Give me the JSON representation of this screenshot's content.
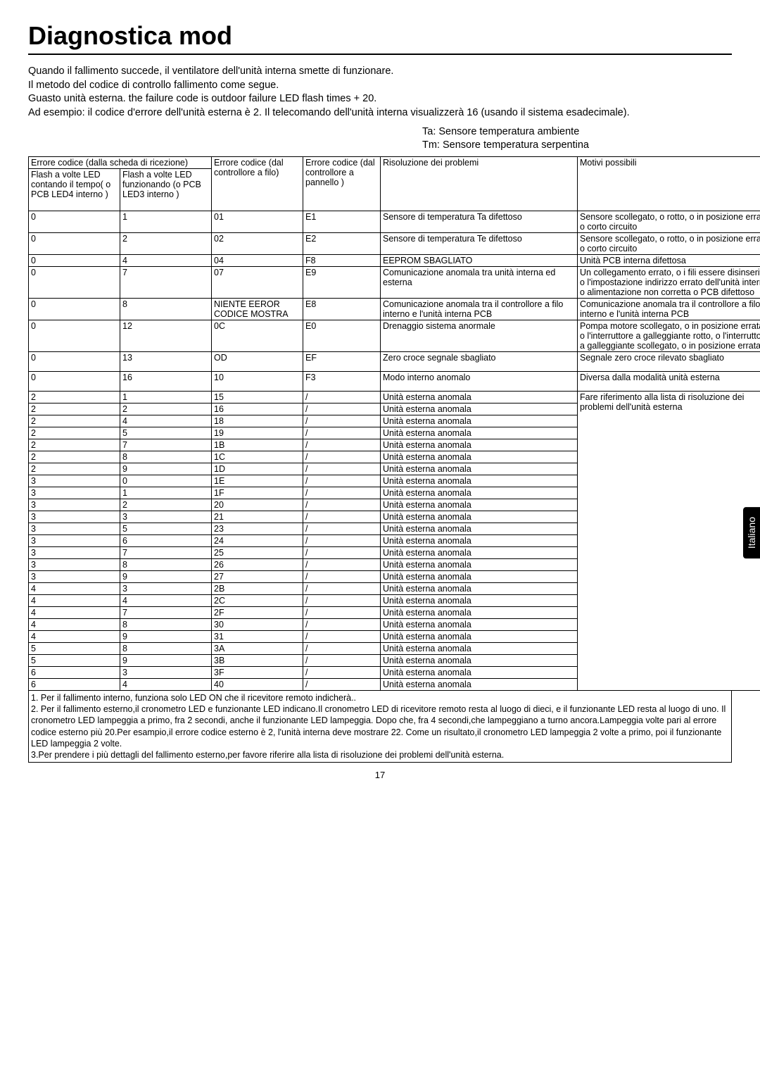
{
  "title": "Diagnostica mod",
  "intro": [
    "Quando il fallimento succede, il ventilatore dell'unità interna smette di funzionare.",
    "Il metodo del codice di controllo fallimento come segue.",
    "Guasto unità esterna. the failure code is outdoor failure LED flash times + 20.",
    "Ad esempio: il codice d'errore dell'unità esterna è 2. Il telecomando dell'unità interna visualizzerà 16 (usando il sistema esadecimale)."
  ],
  "legend": {
    "ta": "Ta: Sensore temperatura ambiente",
    "tm": "Tm: Sensore temperatura serpentina"
  },
  "headers": {
    "h12": "Errore codice (dalla scheda di ricezione)",
    "h3": "Errore codice (dal controllore a filo)",
    "h4": "Errore codice (dal controllore a pannello )",
    "h5": "Risoluzione dei problemi",
    "h6": "Motivi possibili",
    "sub1": "Flash a volte LED contando il tempo( o PCB LED4 interno )",
    "sub2": "Flash a volte LED funzionando (o PCB LED3 interno )"
  },
  "rows": [
    {
      "c1": "0",
      "c2": "1",
      "c3": "01",
      "c4": "E1",
      "c5": "Sensore di temperatura Ta difettoso",
      "c6": "Sensore scollegato, o rotto, o in posizione errata, o corto circuito",
      "tall": true
    },
    {
      "c1": "0",
      "c2": "2",
      "c3": "02",
      "c4": "E2",
      "c5": "Sensore di temperatura Te difettoso",
      "c6": "Sensore scollegato, o rotto, o in posizione errata, o corto circuito",
      "tall": true
    },
    {
      "c1": "0",
      "c2": "4",
      "c3": "04",
      "c4": "F8",
      "c5": "EEPROM SBAGLIATO",
      "c6": "Unità PCB interna difettosa"
    },
    {
      "c1": "0",
      "c2": "7",
      "c3": "07",
      "c4": "E9",
      "c5": "Comunicazione anomala tra unità interna ed esterna",
      "c6": "Un collegamento errato, o i fili essere disinserito, o l'impostazione indirizzo errato dell'unità interna o alimentazione non corretta o PCB difettoso",
      "tall": true
    },
    {
      "c1": "0",
      "c2": "8",
      "c3": "NIENTE EEROR CODICE MOSTRA",
      "c4": "E8",
      "c5": "Comunicazione anomala tra il controllore a filo interno e l'unità interna PCB",
      "c6": "Comunicazione anomala tra il controllore a filo interno e l'unità interna PCB",
      "tall": true
    },
    {
      "c1": "0",
      "c2": "12",
      "c3": "0C",
      "c4": "E0",
      "c5": "Drenaggio sistema anormale",
      "c6": "Pompa motore scollegato, o in posizione errata, o l'interruttore a galleggiante rotto, o l'interruttore a galleggiante scollegato, o in posizione errata.",
      "tall": true
    },
    {
      "c1": "0",
      "c2": "13",
      "c3": "OD",
      "c4": "EF",
      "c5": "Zero croce segnale sbagliato",
      "c6": "Segnale zero croce rilevato sbagliato",
      "tall": true
    },
    {
      "c1": "0",
      "c2": "16",
      "c3": "10",
      "c4": "F3",
      "c5": "Modo interno anomalo",
      "c6": "Diversa dalla modalità unità esterna",
      "tall": true
    }
  ],
  "extRows": [
    {
      "c1": "2",
      "c2": "1",
      "c3": "15",
      "c4": "/",
      "c5": "Unità esterna  anomala"
    },
    {
      "c1": "2",
      "c2": "2",
      "c3": "16",
      "c4": "/",
      "c5": "Unità esterna  anomala"
    },
    {
      "c1": "2",
      "c2": "4",
      "c3": "18",
      "c4": "/",
      "c5": "Unità esterna  anomala"
    },
    {
      "c1": "2",
      "c2": "5",
      "c3": "19",
      "c4": "/",
      "c5": "Unità esterna  anomala"
    },
    {
      "c1": "2",
      "c2": "7",
      "c3": "1B",
      "c4": "/",
      "c5": "Unità esterna  anomala"
    },
    {
      "c1": "2",
      "c2": "8",
      "c3": "1C",
      "c4": "/",
      "c5": "Unità esterna  anomala"
    },
    {
      "c1": "2",
      "c2": "9",
      "c3": "1D",
      "c4": "/",
      "c5": "Unità esterna  anomala"
    },
    {
      "c1": "3",
      "c2": "0",
      "c3": "1E",
      "c4": "/",
      "c5": "Unità esterna  anomala"
    },
    {
      "c1": "3",
      "c2": "1",
      "c3": "1F",
      "c4": "/",
      "c5": "Unità esterna  anomala"
    },
    {
      "c1": "3",
      "c2": "2",
      "c3": "20",
      "c4": "/",
      "c5": "Unità esterna  anomala"
    },
    {
      "c1": "3",
      "c2": "3",
      "c3": "21",
      "c4": "/",
      "c5": "Unità esterna  anomala"
    },
    {
      "c1": "3",
      "c2": "5",
      "c3": "23",
      "c4": "/",
      "c5": "Unità esterna  anomala"
    },
    {
      "c1": "3",
      "c2": "6",
      "c3": "24",
      "c4": "/",
      "c5": "Unità esterna  anomala"
    },
    {
      "c1": "3",
      "c2": "7",
      "c3": "25",
      "c4": "/",
      "c5": "Unità esterna  anomala"
    },
    {
      "c1": "3",
      "c2": "8",
      "c3": "26",
      "c4": "/",
      "c5": "Unità esterna  anomala"
    },
    {
      "c1": "3",
      "c2": "9",
      "c3": "27",
      "c4": "/",
      "c5": "Unità esterna  anomala"
    },
    {
      "c1": "4",
      "c2": "3",
      "c3": "2B",
      "c4": "/",
      "c5": "Unità esterna  anomala"
    },
    {
      "c1": "4",
      "c2": "4",
      "c3": "2C",
      "c4": "/",
      "c5": "Unità esterna  anomala"
    },
    {
      "c1": "4",
      "c2": "7",
      "c3": "2F",
      "c4": "/",
      "c5": "Unità esterna  anomala"
    },
    {
      "c1": "4",
      "c2": "8",
      "c3": "30",
      "c4": "/",
      "c5": "Unità esterna  anomala"
    },
    {
      "c1": "4",
      "c2": "9",
      "c3": "31",
      "c4": "/",
      "c5": "Unità esterna  anomala"
    },
    {
      "c1": "5",
      "c2": "8",
      "c3": "3A",
      "c4": "/",
      "c5": "Unità esterna  anomala"
    },
    {
      "c1": "5",
      "c2": "9",
      "c3": "3B",
      "c4": "/",
      "c5": "Unità esterna  anomala"
    },
    {
      "c1": "6",
      "c2": "3",
      "c3": "3F",
      "c4": "/",
      "c5": "Unità esterna  anomala"
    },
    {
      "c1": "6",
      "c2": "4",
      "c3": "40",
      "c4": "/",
      "c5": "Unità esterna  anomala"
    }
  ],
  "extMerged": "Fare riferimento alla lista di risoluzione dei problemi dell'unità esterna",
  "notes": [
    "1. Per il fallimento interno, funziona solo LED ON che il ricevitore remoto indicherà..",
    "2. Per il fallimento esterno,il cronometro LED e funzionante LED indicano.Il cronometro LED di ricevitore remoto resta al luogo di dieci, e il funzionante LED resta al luogo di uno. Il cronometro LED lampeggia a primo, fra 2 secondi, anche il funzionante LED lampeggia. Dopo che, fra 4 secondi,che lampeggiano a turno ancora.Lampeggia volte pari al errore codice esterno più 20.Per esampio,il errore codice esterno è 2, l'unità interna deve mostrare 22. Come un risultato,il cronometro LED lampeggia 2 volte a primo, poi il funzionante LED lampeggia 2 volte.",
    "3.Per prendere i più dettagli del fallimento esterno,per favore riferire alla lista di risoluzione dei problemi dell'unità esterna."
  ],
  "sidetab": "Italiano",
  "pagenum": "17"
}
